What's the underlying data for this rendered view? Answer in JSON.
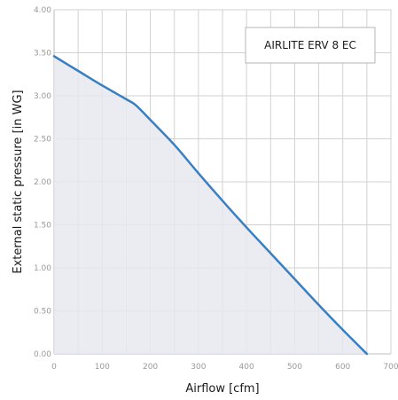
{
  "chart_data": {
    "type": "area",
    "title": "",
    "xlabel": "Airflow [cfm]",
    "ylabel": "External static pressure [in WG]",
    "xlim": [
      0,
      700
    ],
    "ylim": [
      0,
      4.0
    ],
    "x_ticks": [
      0,
      100,
      200,
      300,
      400,
      500,
      600,
      700
    ],
    "x_tick_labels": [
      "0",
      "100",
      "200",
      "300",
      "400",
      "500",
      "600",
      "700"
    ],
    "y_ticks": [
      0,
      0.5,
      1.0,
      1.5,
      2.0,
      2.5,
      3.0,
      3.5,
      4.0
    ],
    "y_tick_labels": [
      "0.00",
      "0.50",
      "1.00",
      "1.50",
      "2.00",
      "2.50",
      "3.00",
      "3.50",
      "4.00"
    ],
    "grid": true,
    "grid_x_step": 50,
    "legend_position": "top-right",
    "series": [
      {
        "name": "AIRLITE ERV 8 EC",
        "color": "#3a7fc1",
        "fill_color": "#e6e9ef",
        "x": [
          0,
          50,
          100,
          150,
          170,
          200,
          250,
          300,
          350,
          400,
          450,
          500,
          550,
          600,
          650
        ],
        "y": [
          3.46,
          3.29,
          3.12,
          2.96,
          2.89,
          2.72,
          2.43,
          2.1,
          1.78,
          1.47,
          1.17,
          0.87,
          0.57,
          0.28,
          0.0
        ]
      }
    ]
  }
}
